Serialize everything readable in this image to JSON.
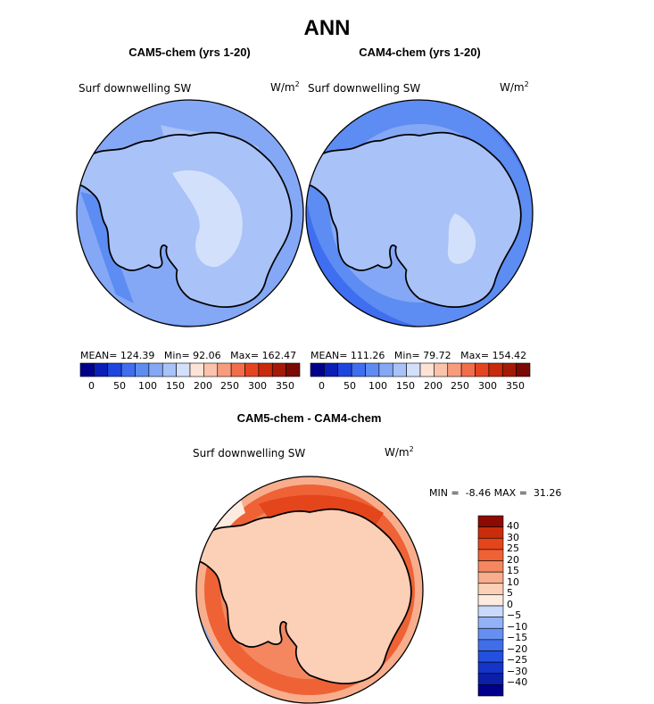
{
  "figure": {
    "title": "ANN",
    "colors": {
      "coast": "#000000",
      "levels_abs": [
        "#00008b",
        "#0a1fb8",
        "#1f45e0",
        "#3f6ef0",
        "#5d8cf2",
        "#84a8f5",
        "#a9c2f7",
        "#d2e0fb",
        "#fde3d6",
        "#fbc3ac",
        "#f79c7d",
        "#f26e4a",
        "#e54420",
        "#c92a0c",
        "#a51a06",
        "#7a0a03"
      ],
      "levels_diff": [
        "#00008b",
        "#0b1fa8",
        "#1535c8",
        "#2250e0",
        "#3f6ee8",
        "#6690f0",
        "#93b2f5",
        "#c8d9fb",
        "#fdebdf",
        "#fbd0b7",
        "#f8ae8c",
        "#f48760",
        "#ee6236",
        "#e4451b",
        "#c92d0b",
        "#8c0a02"
      ]
    },
    "panels": [
      {
        "title": "CAM5-chem (yrs 1-20)",
        "var_label": "Surf downwelling SW",
        "units": "W/m",
        "units_sup": "2",
        "stats": {
          "mean": "124.39",
          "min": "92.06",
          "max": "162.47"
        },
        "colorbar_ticks": [
          "0",
          "50",
          "100",
          "150",
          "200",
          "250",
          "300",
          "350"
        ]
      },
      {
        "title": "CAM4-chem (yrs 1-20)",
        "var_label": "Surf downwelling SW",
        "units": "W/m",
        "units_sup": "2",
        "stats": {
          "mean": "111.26",
          "min": "79.72",
          "max": "154.42"
        },
        "colorbar_ticks": [
          "0",
          "50",
          "100",
          "150",
          "200",
          "250",
          "300",
          "350"
        ]
      }
    ],
    "diff_panel": {
      "title": "CAM5-chem - CAM4-chem",
      "var_label": "Surf downwelling SW",
      "units": "W/m",
      "units_sup": "2",
      "stats": {
        "min": "-8.46",
        "max": "31.26"
      },
      "colorbar_ticks": [
        "40",
        "30",
        "25",
        "20",
        "15",
        "10",
        "5",
        "0",
        "−5",
        "−10",
        "−15",
        "−20",
        "−25",
        "−30",
        "−40"
      ]
    },
    "stat_labels": {
      "mean": "MEAN=",
      "min": "Min=",
      "max": "Max=",
      "min_upper": "MIN =",
      "max_upper": "MAX ="
    }
  },
  "chart_data": [
    {
      "type": "heatmap",
      "projection": "south-polar-stereographic",
      "title": "CAM5-chem (yrs 1-20)",
      "variable": "Surf downwelling SW",
      "units": "W/m2",
      "color_levels": [
        0,
        25,
        50,
        75,
        100,
        125,
        150,
        175,
        200,
        225,
        250,
        275,
        300,
        325,
        350
      ],
      "colorbar_range": [
        0,
        350
      ],
      "mean": 124.39,
      "min": 92.06,
      "max": 162.47
    },
    {
      "type": "heatmap",
      "projection": "south-polar-stereographic",
      "title": "CAM4-chem (yrs 1-20)",
      "variable": "Surf downwelling SW",
      "units": "W/m2",
      "color_levels": [
        0,
        25,
        50,
        75,
        100,
        125,
        150,
        175,
        200,
        225,
        250,
        275,
        300,
        325,
        350
      ],
      "colorbar_range": [
        0,
        350
      ],
      "mean": 111.26,
      "min": 79.72,
      "max": 154.42
    },
    {
      "type": "heatmap",
      "projection": "south-polar-stereographic",
      "title": "CAM5-chem - CAM4-chem",
      "variable": "Surf downwelling SW",
      "units": "W/m2",
      "color_levels": [
        -40,
        -30,
        -25,
        -20,
        -15,
        -10,
        -5,
        0,
        5,
        10,
        15,
        20,
        25,
        30,
        40
      ],
      "min": -8.46,
      "max": 31.26
    }
  ]
}
